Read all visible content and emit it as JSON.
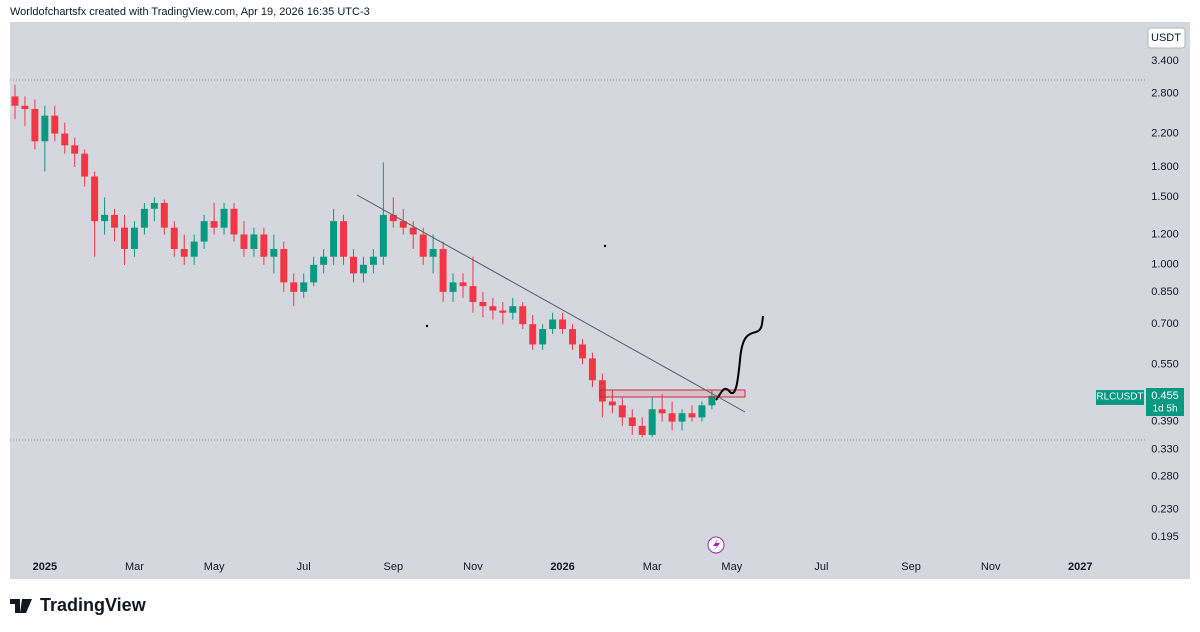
{
  "header": "Worldofchartsfx created with TradingView.com, Apr 19, 2026 16:35 UTC-3",
  "currency": "USDT",
  "brand": "TradingView",
  "chart_data": {
    "type": "candlestick",
    "symbol": "RLCUSDT",
    "countdown": "1d 5h",
    "log_scale": true,
    "grid": false,
    "up_color": "#089981",
    "down_color": "#f23645",
    "ylim": [
      0.175,
      4.3
    ],
    "yticks": [
      {
        "value": 3.4,
        "label": "3.400"
      },
      {
        "value": 2.8,
        "label": "2.800"
      },
      {
        "value": 2.2,
        "label": "2.200"
      },
      {
        "value": 1.8,
        "label": "1.800"
      },
      {
        "value": 1.5,
        "label": "1.500"
      },
      {
        "value": 1.2,
        "label": "1.200"
      },
      {
        "value": 1.0,
        "label": "1.000"
      },
      {
        "value": 0.85,
        "label": "0.850"
      },
      {
        "value": 0.7,
        "label": "0.700"
      },
      {
        "value": 0.55,
        "label": "0.550"
      },
      {
        "value": 0.39,
        "label": "0.390"
      },
      {
        "value": 0.33,
        "label": "0.330"
      },
      {
        "value": 0.28,
        "label": "0.280"
      },
      {
        "value": 0.23,
        "label": "0.230"
      },
      {
        "value": 0.195,
        "label": "0.195"
      }
    ],
    "categories": [
      null,
      null,
      null,
      "2025",
      null,
      null,
      null,
      null,
      null,
      null,
      null,
      null,
      "Mar",
      null,
      null,
      null,
      null,
      null,
      null,
      null,
      "May",
      null,
      null,
      null,
      null,
      null,
      null,
      null,
      null,
      "Jul",
      null,
      null,
      null,
      null,
      null,
      null,
      null,
      null,
      "Sep",
      null,
      null,
      null,
      null,
      null,
      null,
      null,
      "Nov",
      null,
      null,
      null,
      null,
      null,
      null,
      null,
      null,
      "2026",
      null,
      null,
      null,
      null,
      null,
      null,
      null,
      null,
      "Mar",
      null,
      null,
      null,
      null,
      null,
      null,
      null,
      "May",
      null,
      null,
      null,
      null,
      null,
      null,
      null,
      null,
      "Jul",
      null,
      null,
      null,
      null,
      null,
      null,
      null,
      null,
      "Sep",
      null,
      null,
      null,
      null,
      null,
      null,
      null,
      "Nov",
      null,
      null,
      null,
      null,
      null,
      null,
      null,
      null,
      "2027",
      null,
      null,
      null,
      null,
      null,
      null
    ],
    "open": [
      2.75,
      2.6,
      2.55,
      2.1,
      2.45,
      2.2,
      2.05,
      1.95,
      1.7,
      1.3,
      1.35,
      1.25,
      1.1,
      1.25,
      1.4,
      1.45,
      1.25,
      1.1,
      1.05,
      1.15,
      1.3,
      1.25,
      1.4,
      1.2,
      1.1,
      1.2,
      1.05,
      1.1,
      0.9,
      0.85,
      0.9,
      1.0,
      1.05,
      1.3,
      1.05,
      0.95,
      1.0,
      1.05,
      1.35,
      1.3,
      1.25,
      1.2,
      1.05,
      1.1,
      0.85,
      0.9,
      0.88,
      0.8,
      0.78,
      0.76,
      0.75,
      0.78,
      0.7,
      0.62,
      0.68,
      0.72,
      0.68,
      0.62,
      0.57,
      0.5,
      0.44,
      0.43,
      0.4,
      0.38,
      0.36,
      0.42,
      0.41,
      0.39,
      0.41,
      0.4,
      0.43,
      null,
      null,
      null,
      null,
      null,
      null,
      null,
      null,
      null,
      null,
      null,
      null,
      null,
      null,
      null,
      null,
      null,
      null,
      null,
      null,
      null,
      null,
      null,
      null,
      null,
      null,
      null,
      null,
      null,
      null,
      null,
      null,
      null,
      null,
      null,
      null,
      null,
      null,
      null,
      null,
      null,
      null,
      null
    ],
    "high": [
      2.95,
      2.75,
      2.7,
      2.6,
      2.6,
      2.35,
      2.15,
      2.0,
      1.75,
      1.5,
      1.4,
      1.35,
      1.3,
      1.45,
      1.5,
      1.48,
      1.3,
      1.2,
      1.2,
      1.35,
      1.45,
      1.45,
      1.45,
      1.3,
      1.25,
      1.25,
      1.2,
      1.15,
      0.95,
      0.95,
      1.05,
      1.1,
      1.4,
      1.35,
      1.1,
      1.05,
      1.1,
      1.85,
      1.5,
      1.4,
      1.3,
      1.25,
      1.2,
      1.15,
      0.95,
      0.95,
      1.05,
      0.85,
      0.82,
      0.8,
      0.82,
      0.8,
      0.74,
      0.7,
      0.75,
      0.75,
      0.7,
      0.64,
      0.59,
      0.52,
      0.47,
      0.45,
      0.42,
      0.4,
      0.45,
      0.46,
      0.44,
      0.42,
      0.43,
      0.44,
      0.47,
      null,
      null,
      null,
      null,
      null,
      null,
      null,
      null,
      null,
      null,
      null,
      null,
      null,
      null,
      null,
      null,
      null,
      null,
      null,
      null,
      null,
      null,
      null,
      null,
      null,
      null,
      null,
      null,
      null,
      null,
      null,
      null,
      null,
      null,
      null,
      null,
      null,
      null,
      null,
      null,
      null,
      null,
      null
    ],
    "low": [
      2.4,
      2.3,
      2.0,
      1.75,
      2.1,
      1.95,
      1.8,
      1.6,
      1.05,
      1.2,
      1.15,
      1.0,
      1.05,
      1.2,
      1.3,
      1.2,
      1.05,
      1.0,
      1.0,
      1.1,
      1.2,
      1.2,
      1.15,
      1.05,
      1.05,
      1.0,
      0.95,
      0.85,
      0.78,
      0.82,
      0.88,
      0.95,
      1.0,
      1.0,
      0.9,
      0.9,
      0.95,
      1.0,
      1.25,
      1.2,
      1.1,
      1.0,
      0.95,
      0.8,
      0.8,
      0.82,
      0.75,
      0.73,
      0.72,
      0.7,
      0.72,
      0.68,
      0.6,
      0.6,
      0.66,
      0.66,
      0.6,
      0.55,
      0.48,
      0.4,
      0.41,
      0.38,
      0.36,
      0.355,
      0.355,
      0.39,
      0.37,
      0.37,
      0.39,
      0.39,
      0.42,
      null,
      null,
      null,
      null,
      null,
      null,
      null,
      null,
      null,
      null,
      null,
      null,
      null,
      null,
      null,
      null,
      null,
      null,
      null,
      null,
      null,
      null,
      null,
      null,
      null,
      null,
      null,
      null,
      null,
      null,
      null,
      null,
      null,
      null,
      null,
      null,
      null,
      null,
      null,
      null,
      null,
      null,
      null
    ],
    "close": [
      2.6,
      2.55,
      2.1,
      2.45,
      2.2,
      2.05,
      1.95,
      1.7,
      1.3,
      1.35,
      1.25,
      1.1,
      1.25,
      1.4,
      1.45,
      1.25,
      1.1,
      1.05,
      1.15,
      1.3,
      1.25,
      1.4,
      1.2,
      1.1,
      1.2,
      1.05,
      1.1,
      0.9,
      0.85,
      0.9,
      1.0,
      1.05,
      1.3,
      1.05,
      0.95,
      1.0,
      1.05,
      1.35,
      1.3,
      1.25,
      1.2,
      1.05,
      1.1,
      0.85,
      0.9,
      0.88,
      0.8,
      0.78,
      0.76,
      0.75,
      0.78,
      0.7,
      0.62,
      0.68,
      0.72,
      0.68,
      0.62,
      0.57,
      0.5,
      0.44,
      0.43,
      0.4,
      0.38,
      0.36,
      0.42,
      0.41,
      0.39,
      0.41,
      0.4,
      0.43,
      0.455,
      null,
      null,
      null,
      null,
      null,
      null,
      null,
      null,
      null,
      null,
      null,
      null,
      null,
      null,
      null,
      null,
      null,
      null,
      null,
      null,
      null,
      null,
      null,
      null,
      null,
      null,
      null,
      null,
      null,
      null,
      null,
      null,
      null,
      null,
      null,
      null,
      null,
      null,
      null,
      null,
      null,
      null,
      null
    ]
  }
}
